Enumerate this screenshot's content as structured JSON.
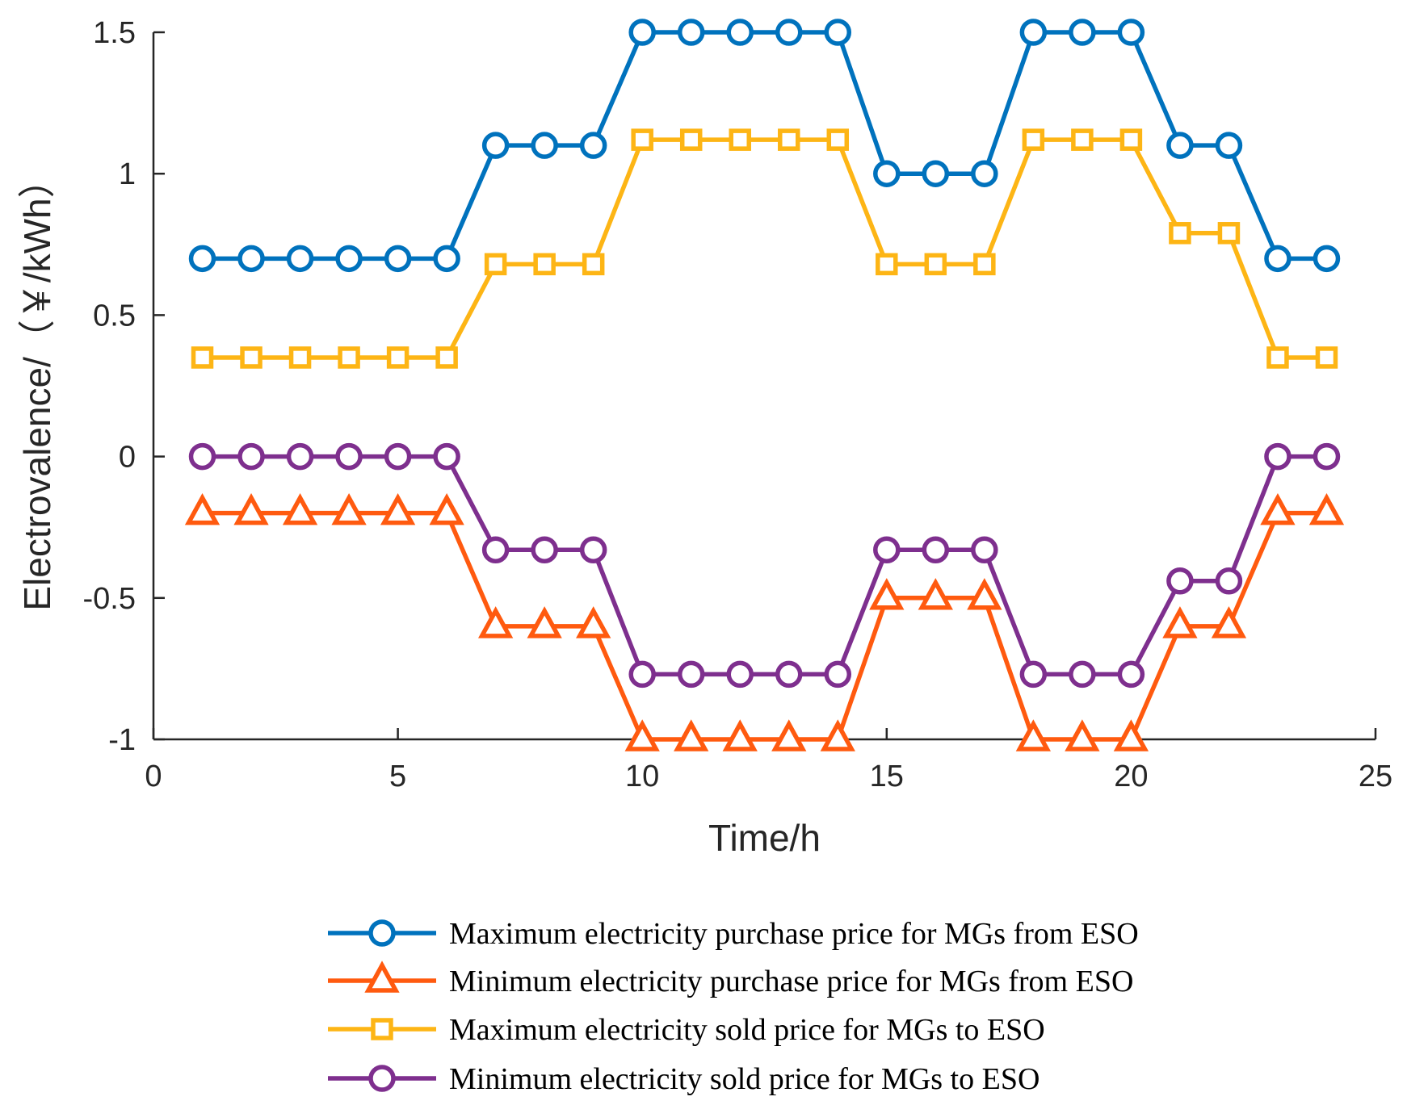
{
  "chart_data": {
    "type": "line",
    "xlabel": "Time/h",
    "ylabel": "Electrovalence/（￥/kWh）",
    "xlim": [
      0,
      25
    ],
    "ylim": [
      -1,
      1.5
    ],
    "xticks": [
      0,
      5,
      10,
      15,
      20,
      25
    ],
    "yticks": [
      -1,
      -0.5,
      0,
      0.5,
      1,
      1.5
    ],
    "xtick_labels": [
      "0",
      "5",
      "10",
      "15",
      "20",
      "25"
    ],
    "ytick_labels": [
      "-1",
      "-0.5",
      "0",
      "0.5",
      "1",
      "1.5"
    ],
    "grid": false,
    "legend_position": "bottom",
    "x": [
      1,
      2,
      3,
      4,
      5,
      6,
      7,
      8,
      9,
      10,
      11,
      12,
      13,
      14,
      15,
      16,
      17,
      18,
      19,
      20,
      21,
      22,
      23,
      24
    ],
    "series": [
      {
        "name": "Maximum electricity purchase price for MGs from ESO",
        "marker": "circle",
        "color": "#0072BD",
        "values": [
          0.7,
          0.7,
          0.7,
          0.7,
          0.7,
          0.7,
          1.1,
          1.1,
          1.1,
          1.5,
          1.5,
          1.5,
          1.5,
          1.5,
          1.0,
          1.0,
          1.0,
          1.5,
          1.5,
          1.5,
          1.1,
          1.1,
          0.7,
          0.7
        ]
      },
      {
        "name": "Minimum electricity purchase price for MGs from ESO",
        "marker": "triangle",
        "color": "#FF5A0F",
        "values": [
          -0.2,
          -0.2,
          -0.2,
          -0.2,
          -0.2,
          -0.2,
          -0.6,
          -0.6,
          -0.6,
          -1.0,
          -1.0,
          -1.0,
          -1.0,
          -1.0,
          -0.5,
          -0.5,
          -0.5,
          -1.0,
          -1.0,
          -1.0,
          -0.6,
          -0.6,
          -0.2,
          -0.2
        ]
      },
      {
        "name": "Maximum electricity sold price for MGs to ESO",
        "marker": "square",
        "color": "#FDB515",
        "values": [
          0.35,
          0.35,
          0.35,
          0.35,
          0.35,
          0.35,
          0.68,
          0.68,
          0.68,
          1.12,
          1.12,
          1.12,
          1.12,
          1.12,
          0.68,
          0.68,
          0.68,
          1.12,
          1.12,
          1.12,
          0.79,
          0.79,
          0.35,
          0.35
        ]
      },
      {
        "name": "Minimum electricity sold price for MGs to ESO",
        "marker": "circle",
        "color": "#7E2F8E",
        "values": [
          0,
          0,
          0,
          0,
          0,
          0,
          -0.33,
          -0.33,
          -0.33,
          -0.77,
          -0.77,
          -0.77,
          -0.77,
          -0.77,
          -0.33,
          -0.33,
          -0.33,
          -0.77,
          -0.77,
          -0.77,
          -0.44,
          -0.44,
          0,
          0
        ]
      }
    ]
  }
}
